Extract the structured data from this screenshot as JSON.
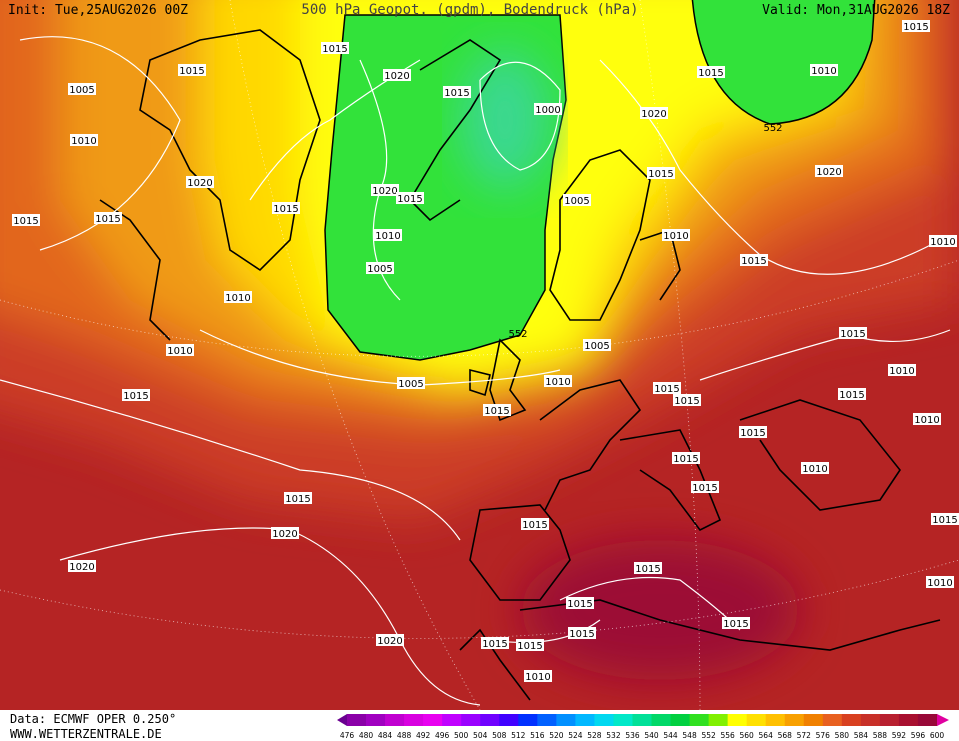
{
  "header": {
    "init": "Init: Tue,25AUG2026 00Z",
    "title": "500 hPa Geopot. (gpdm), Bodendruck (hPa)",
    "valid": "Valid: Mon,31AUG2026 18Z"
  },
  "map": {
    "isobar_labels": [
      1015,
      1015,
      1005,
      1020,
      1015,
      1000,
      1020,
      1015,
      1010,
      552,
      1015,
      1010,
      1020,
      1015,
      1020,
      1015,
      1015,
      1015,
      1020,
      1015,
      1005,
      1010,
      1010,
      1015,
      1005,
      1010,
      1010,
      552,
      1005,
      1015,
      1010,
      1005,
      1015,
      1010,
      1015,
      1015,
      1015,
      1015,
      1010,
      1015,
      1015,
      1010,
      1015,
      1015,
      1015,
      1020,
      1015,
      1020,
      1010,
      1015,
      1015,
      1015,
      1020,
      1015,
      1015,
      1010,
      1010,
      1015
    ]
  },
  "colorbar": {
    "labels": [
      476,
      480,
      484,
      488,
      492,
      496,
      500,
      504,
      508,
      512,
      516,
      520,
      524,
      528,
      532,
      536,
      540,
      544,
      548,
      552,
      556,
      560,
      564,
      568,
      572,
      576,
      580,
      584,
      588,
      592,
      596,
      600
    ],
    "colors": [
      "#6a0090",
      "#8a00a8",
      "#a000c0",
      "#c000d0",
      "#d800e0",
      "#e800f0",
      "#c000ff",
      "#9a00ff",
      "#7000ff",
      "#4000ff",
      "#0030ff",
      "#0060ff",
      "#0090ff",
      "#00b8ff",
      "#00d8f0",
      "#00e8c8",
      "#00e098",
      "#00d868",
      "#00d040",
      "#30e020",
      "#80f000",
      "#ffff00",
      "#ffe000",
      "#ffc000",
      "#f8a000",
      "#f08000",
      "#e86020",
      "#d84020",
      "#c83028",
      "#b82030",
      "#a81030",
      "#980838",
      "#e000a0"
    ]
  },
  "footer": {
    "source": "Data: ECMWF OPER 0.250°",
    "site": "WWW.WETTERZENTRALE.DE"
  }
}
